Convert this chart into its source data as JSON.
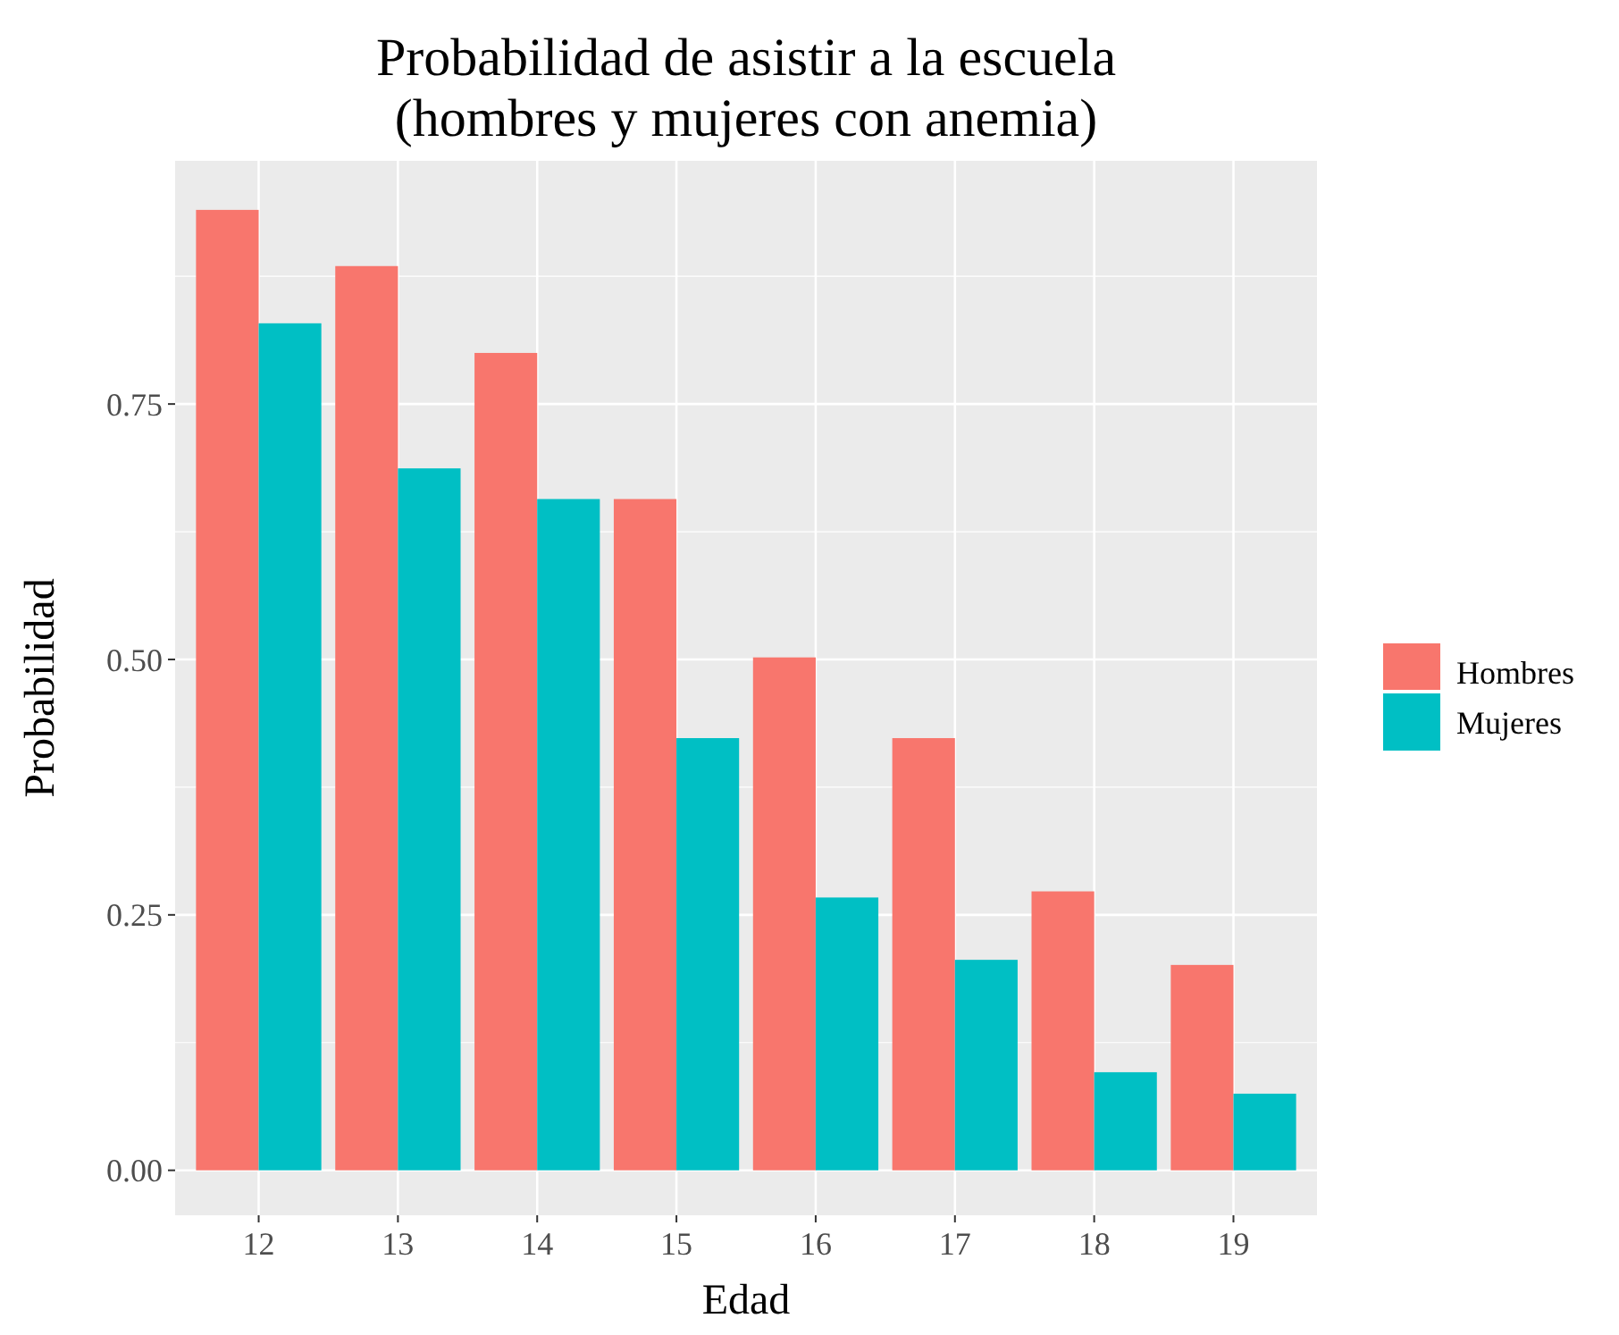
{
  "chart_data": {
    "type": "bar",
    "title": "Probabilidad de asistir a la escuela\n(hombres y mujeres con anemia)",
    "xlabel": "Edad",
    "ylabel": "Probabilidad",
    "categories": [
      "12",
      "13",
      "14",
      "15",
      "16",
      "17",
      "18",
      "19"
    ],
    "series": [
      {
        "name": "Hombres",
        "color": "#f8766d",
        "values": [
          0.94,
          0.885,
          0.8,
          0.657,
          0.502,
          0.423,
          0.273,
          0.201
        ]
      },
      {
        "name": "Mujeres",
        "color": "#00bfc4",
        "values": [
          0.829,
          0.687,
          0.657,
          0.423,
          0.267,
          0.206,
          0.096,
          0.075
        ]
      }
    ],
    "ylim": [
      -0.044,
      0.988
    ],
    "yticks": [
      {
        "value": 0,
        "label": "0.00"
      },
      {
        "value": 0.125,
        "label": null
      },
      {
        "value": 0.25,
        "label": "0.25"
      },
      {
        "value": 0.375,
        "label": null
      },
      {
        "value": 0.5,
        "label": "0.50"
      },
      {
        "value": 0.625,
        "label": null
      },
      {
        "value": 0.75,
        "label": "0.75"
      },
      {
        "value": 0.875,
        "label": null
      }
    ],
    "grid": true,
    "legend": "right"
  }
}
